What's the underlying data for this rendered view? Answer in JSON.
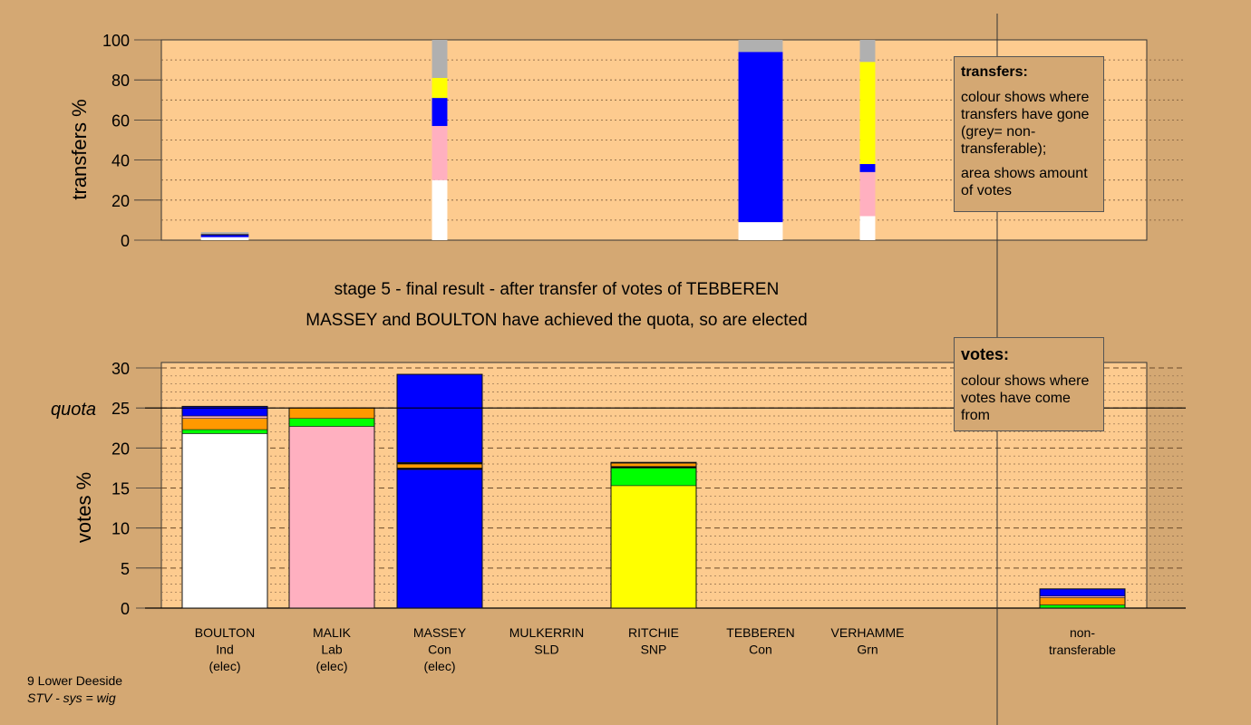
{
  "headline": {
    "line1": "stage 5 - final result - after transfer of votes of TEBBEREN",
    "line2": "MASSEY and BOULTON have achieved the quota, so are elected"
  },
  "footer": {
    "constituency": "9 Lower Deeside",
    "system": "STV - sys = wig"
  },
  "legend_transfers": {
    "title": "transfers:",
    "text1": "colour shows where transfers have gone (grey= non-transferable);",
    "text2": "area shows amount of votes"
  },
  "legend_votes": {
    "title": "votes:",
    "text1": "colour shows where votes have come from"
  },
  "colors": {
    "background": "#d4a873",
    "plot_background": "#fdcb8f",
    "BOULTON": "#ffffff",
    "MALIK": "#ffb0c0",
    "MASSEY": "#0000ff",
    "MULKERRIN": "#ff9900",
    "RITCHIE": "#ffff00",
    "TEBBEREN": "#000000",
    "VERHAMME": "#00ff00",
    "non_transferable": "#b0b0b0"
  },
  "chart_data": [
    {
      "type": "bar",
      "ylabel": "transfers %",
      "ylim": [
        0,
        100
      ],
      "yticks": [
        0,
        20,
        40,
        60,
        80,
        100
      ],
      "grid": true,
      "columns": [
        {
          "name": "BOULTON",
          "width": 0.56,
          "segments": [
            {
              "who": "BOULTON",
              "value": 1.5
            },
            {
              "who": "MASSEY",
              "value": 1.0
            },
            {
              "who": "TEBBEREN",
              "value": 0.5
            },
            {
              "who": "non_transferable",
              "value": 1.0
            }
          ]
        },
        {
          "name": "MALIK",
          "width": 0,
          "segments": []
        },
        {
          "name": "MASSEY",
          "width": 0.18,
          "segments": [
            {
              "who": "BOULTON",
              "value": 30
            },
            {
              "who": "MALIK",
              "value": 27
            },
            {
              "who": "MASSEY",
              "value": 14
            },
            {
              "who": "RITCHIE",
              "value": 10
            },
            {
              "who": "non_transferable",
              "value": 19
            }
          ]
        },
        {
          "name": "MULKERRIN",
          "width": 0,
          "segments": []
        },
        {
          "name": "RITCHIE",
          "width": 0,
          "segments": []
        },
        {
          "name": "TEBBEREN",
          "width": 0.52,
          "segments": [
            {
              "who": "BOULTON",
              "value": 9
            },
            {
              "who": "MASSEY",
              "value": 85
            },
            {
              "who": "non_transferable",
              "value": 6
            }
          ]
        },
        {
          "name": "VERHAMME",
          "width": 0.18,
          "segments": [
            {
              "who": "BOULTON",
              "value": 12
            },
            {
              "who": "MALIK",
              "value": 22
            },
            {
              "who": "MASSEY",
              "value": 4
            },
            {
              "who": "RITCHIE",
              "value": 51
            },
            {
              "who": "non_transferable",
              "value": 11
            }
          ]
        }
      ]
    },
    {
      "type": "bar",
      "ylabel": "votes %",
      "ylim": [
        0,
        30
      ],
      "yticks": [
        0,
        5,
        10,
        15,
        20,
        25,
        30
      ],
      "quota": 25,
      "quota_label": "quota",
      "grid": true,
      "categories": [
        {
          "name": "BOULTON",
          "party": "Ind",
          "status": "(elec)"
        },
        {
          "name": "MALIK",
          "party": "Lab",
          "status": "(elec)"
        },
        {
          "name": "MASSEY",
          "party": "Con",
          "status": "(elec)"
        },
        {
          "name": "MULKERRIN",
          "party": "SLD",
          "status": ""
        },
        {
          "name": "RITCHIE",
          "party": "SNP",
          "status": ""
        },
        {
          "name": "TEBBEREN",
          "party": "Con",
          "status": ""
        },
        {
          "name": "VERHAMME",
          "party": "Grn",
          "status": ""
        },
        {
          "name": "non-transferable",
          "party": "",
          "status": ""
        }
      ],
      "stacks": [
        [
          {
            "who": "BOULTON",
            "value": 21.8
          },
          {
            "who": "VERHAMME",
            "value": 0.5
          },
          {
            "who": "MULKERRIN",
            "value": 1.4
          },
          {
            "who": "MALIK",
            "value": 0.3
          },
          {
            "who": "MASSEY",
            "value": 1.2
          }
        ],
        [
          {
            "who": "MALIK",
            "value": 22.7
          },
          {
            "who": "VERHAMME",
            "value": 1.0
          },
          {
            "who": "MULKERRIN",
            "value": 1.3
          }
        ],
        [
          {
            "who": "MASSEY",
            "value": 17.3
          },
          {
            "who": "TEBBEREN",
            "value": 0.2
          },
          {
            "who": "MULKERRIN",
            "value": 0.5
          },
          {
            "who": "TEBBEREN",
            "value": 0.2
          },
          {
            "who": "MASSEY",
            "value": 11.0
          }
        ],
        [],
        [
          {
            "who": "RITCHIE",
            "value": 15.3
          },
          {
            "who": "VERHAMME",
            "value": 2.2
          },
          {
            "who": "TEBBEREN",
            "value": 0.2
          },
          {
            "who": "MULKERRIN",
            "value": 0.4
          },
          {
            "who": "TEBBEREN",
            "value": 0.1
          }
        ],
        [],
        [],
        [
          {
            "who": "VERHAMME",
            "value": 0.4
          },
          {
            "who": "MULKERRIN",
            "value": 0.9
          },
          {
            "who": "MALIK",
            "value": 0.2
          },
          {
            "who": "MASSEY",
            "value": 0.9
          }
        ]
      ]
    }
  ]
}
